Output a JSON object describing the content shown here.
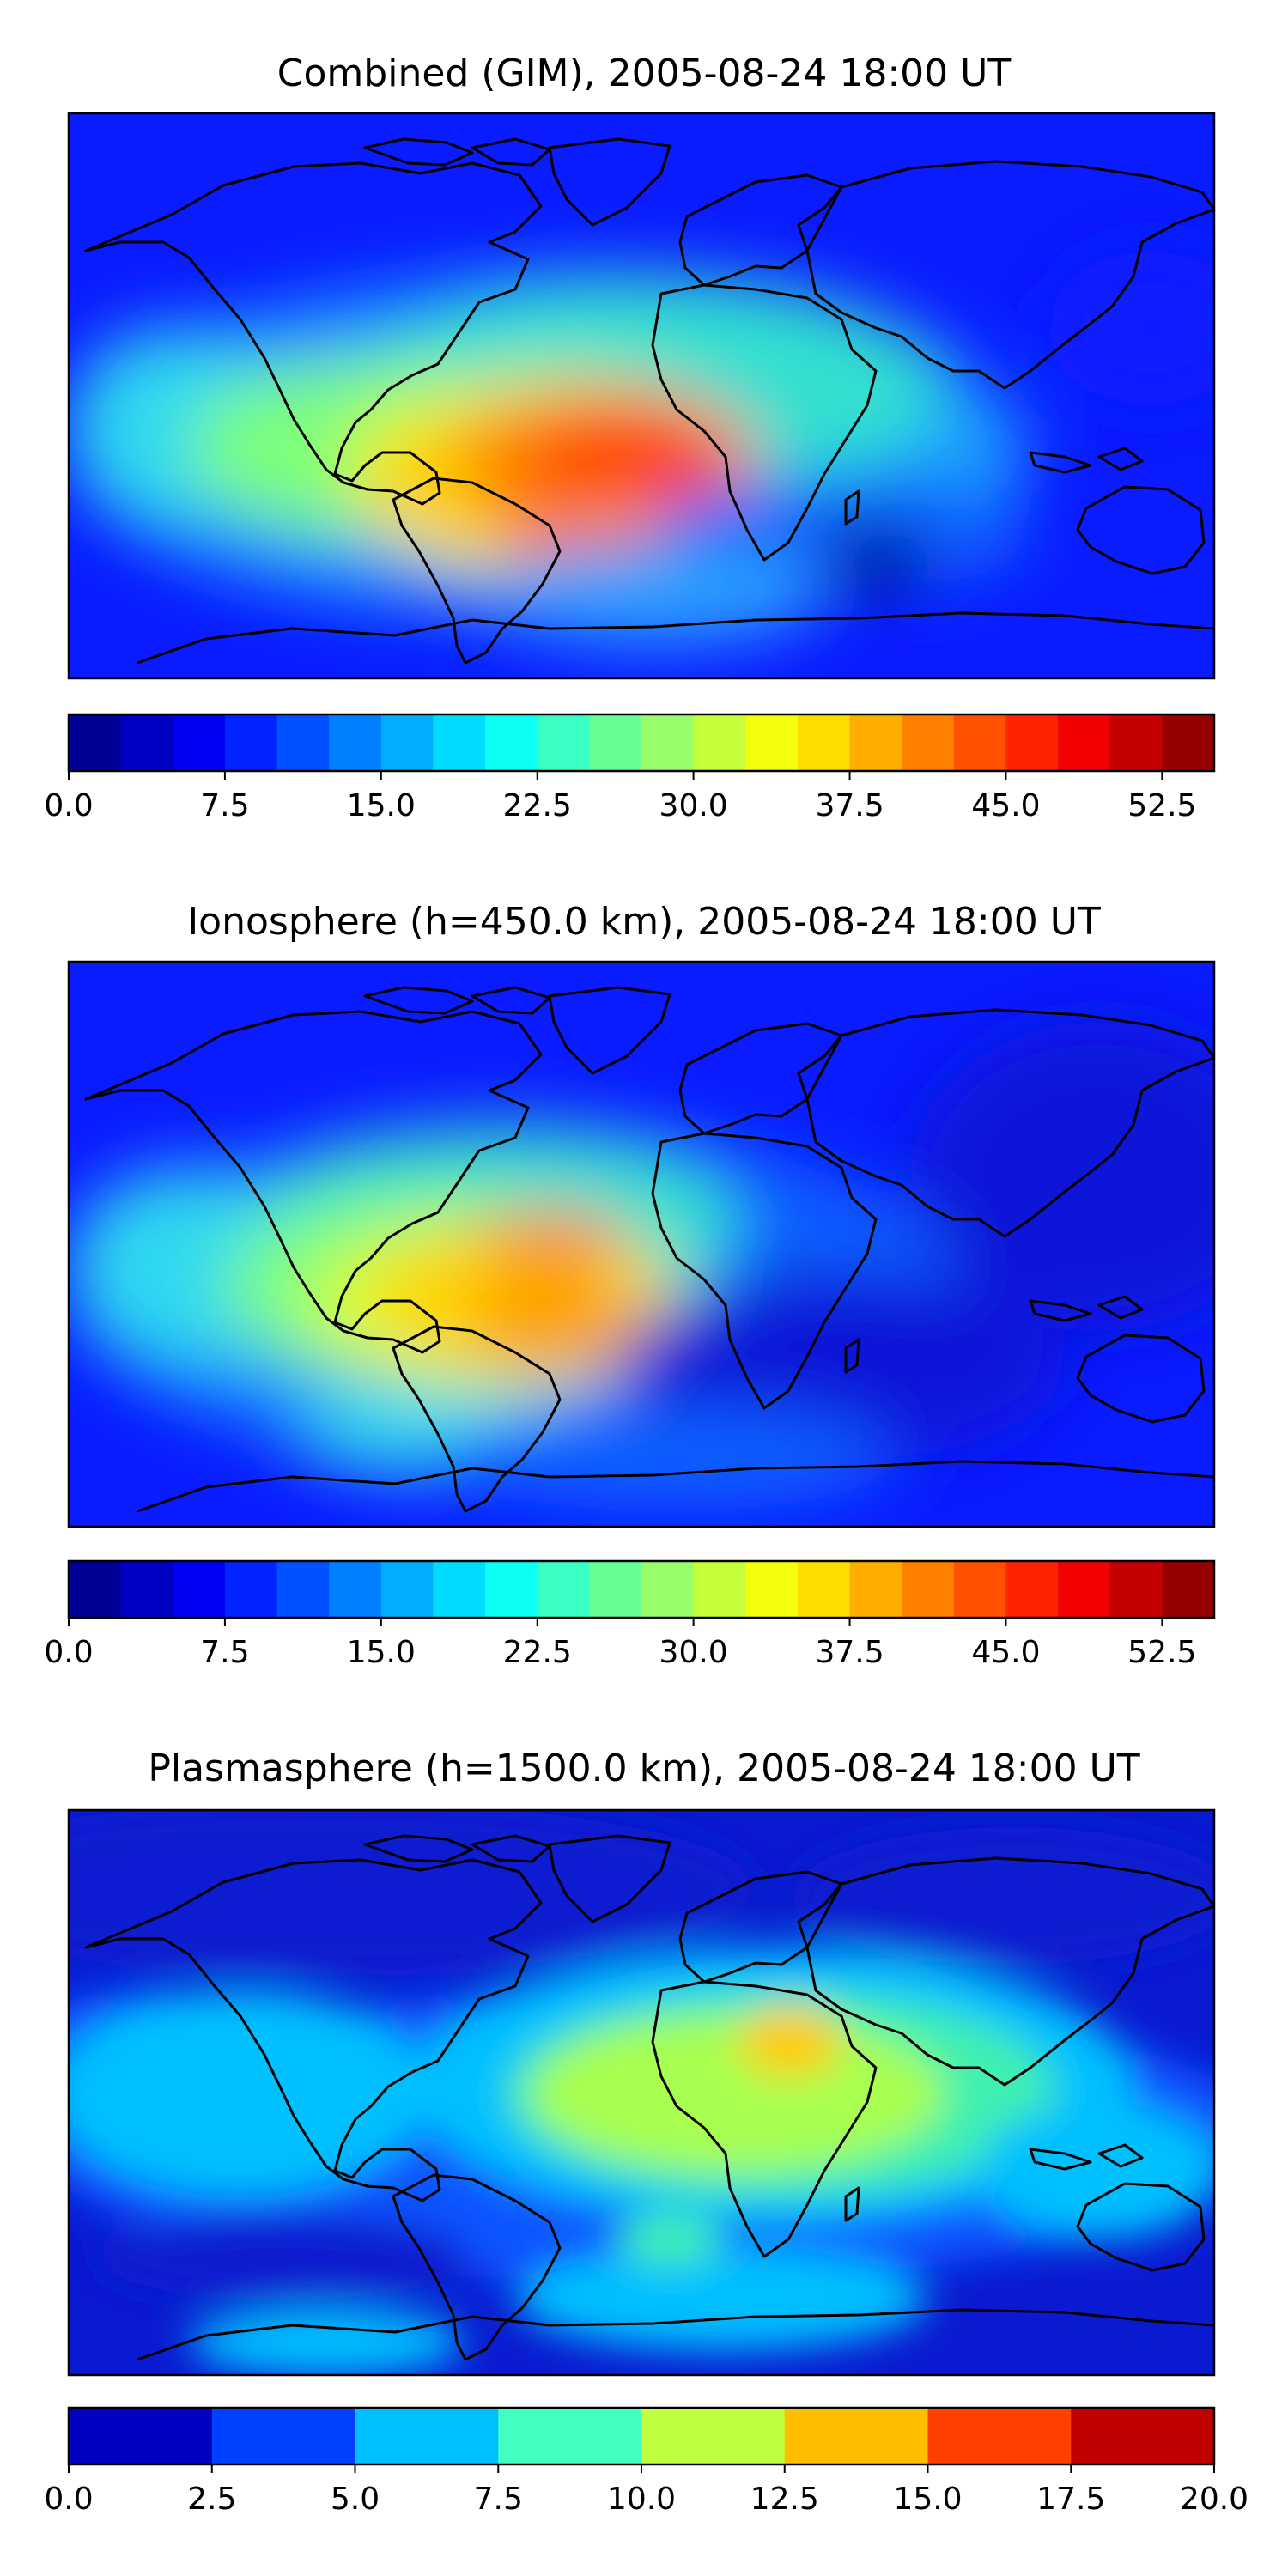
{
  "maps": [
    {
      "id": "combined",
      "title": "Combined (GIM), 2005-08-24 18:00 UT",
      "colorbar": {
        "min": 0.0,
        "max": 55.0,
        "step": 2.5,
        "ticks": [
          "0.0",
          "7.5",
          "15.0",
          "22.5",
          "30.0",
          "37.5",
          "45.0",
          "52.5"
        ],
        "tick_values": [
          0,
          7.5,
          15,
          22.5,
          30,
          37.5,
          45,
          52.5
        ]
      }
    },
    {
      "id": "ionosphere",
      "title": "Ionosphere  (h=450.0 km), 2005-08-24 18:00 UT",
      "colorbar": {
        "min": 0.0,
        "max": 55.0,
        "step": 2.5,
        "ticks": [
          "0.0",
          "7.5",
          "15.0",
          "22.5",
          "30.0",
          "37.5",
          "45.0",
          "52.5"
        ],
        "tick_values": [
          0,
          7.5,
          15,
          22.5,
          30,
          37.5,
          45,
          52.5
        ]
      }
    },
    {
      "id": "plasmasphere",
      "title": "Plasmasphere (h=1500.0 km), 2005-08-24 18:00 UT",
      "colorbar": {
        "min": 0.0,
        "max": 20.0,
        "step": 2.5,
        "ticks": [
          "0.0",
          "2.5",
          "5.0",
          "7.5",
          "10.0",
          "12.5",
          "15.0",
          "17.5",
          "20.0"
        ],
        "tick_values": [
          0,
          2.5,
          5,
          7.5,
          10,
          12.5,
          15,
          17.5,
          20
        ]
      }
    }
  ],
  "colormap": "jet"
}
